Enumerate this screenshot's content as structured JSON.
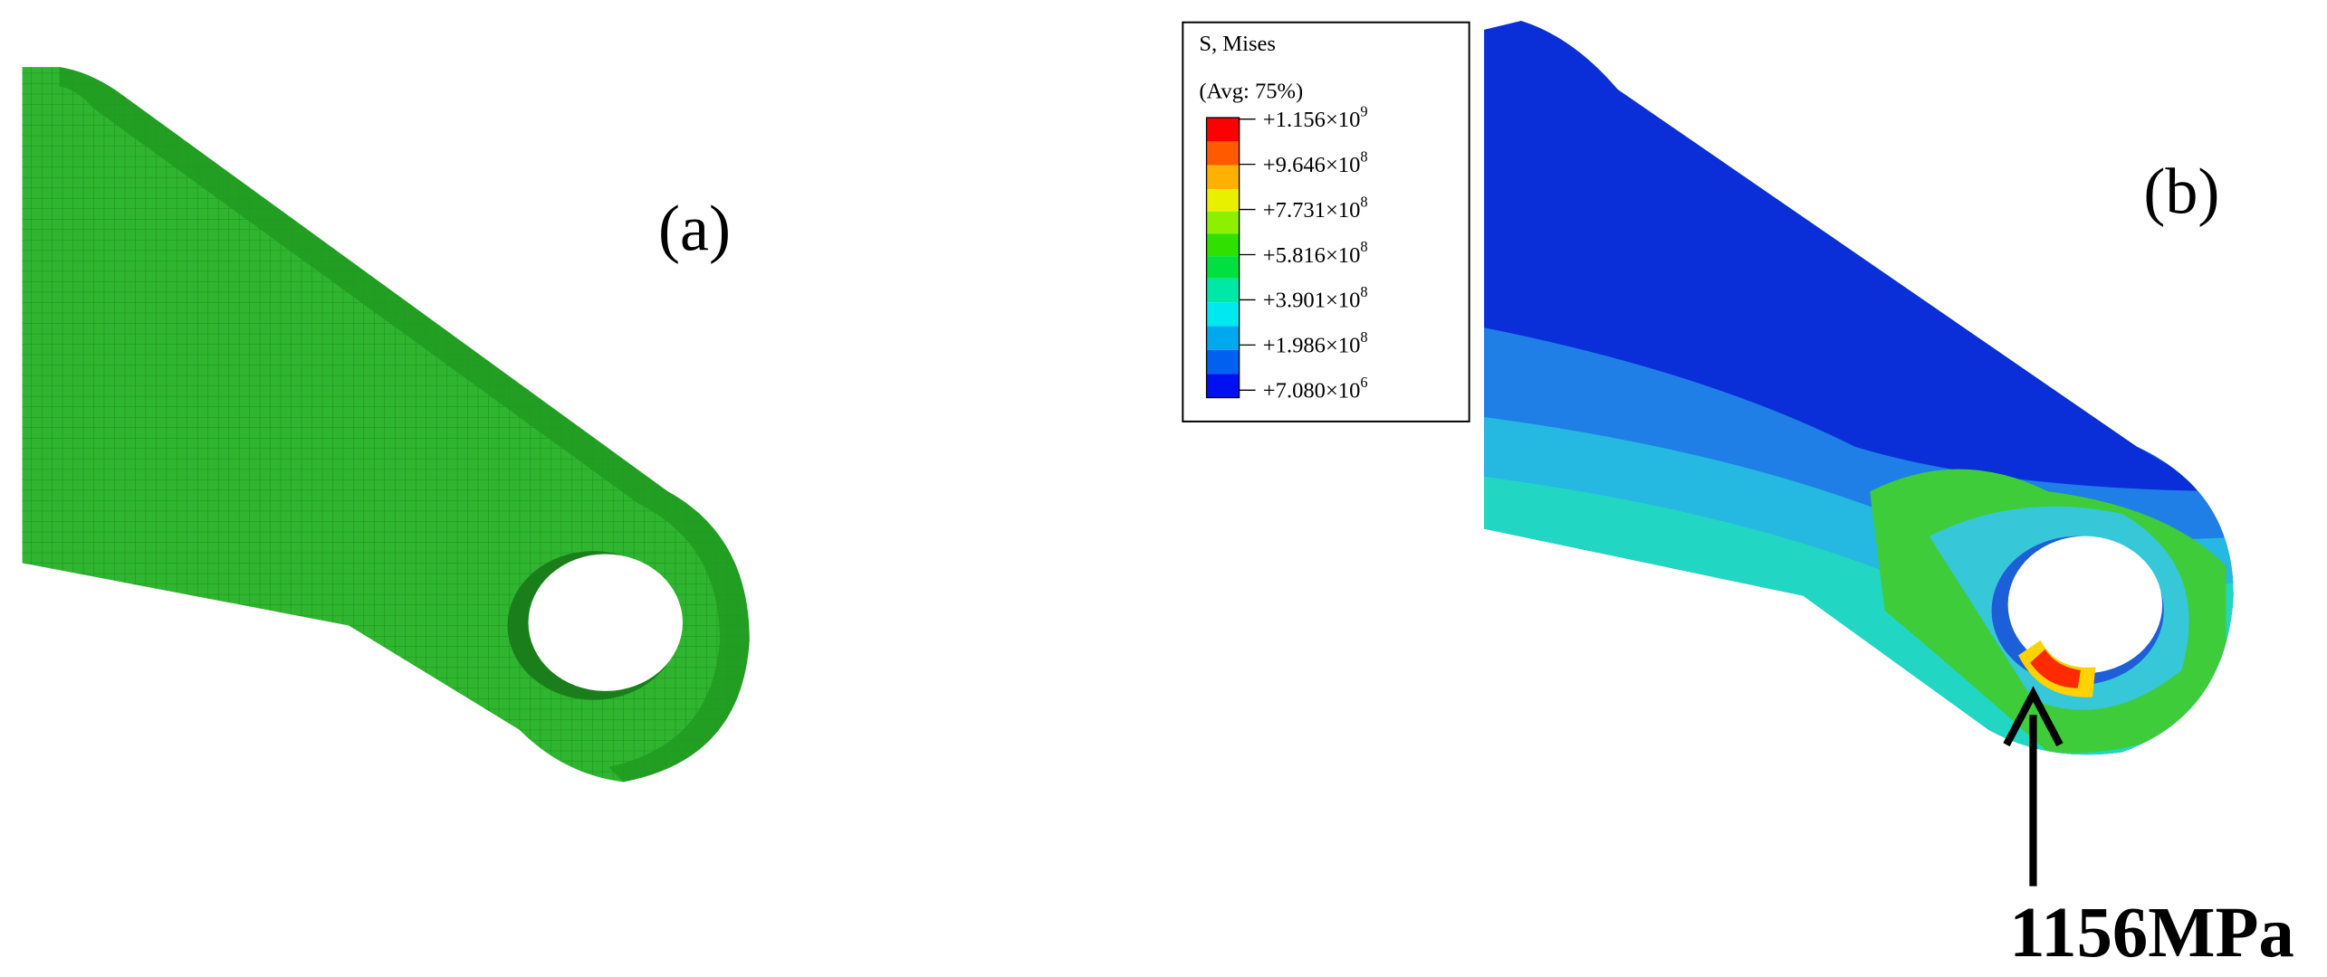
{
  "panels": [
    {
      "label": "(a)"
    },
    {
      "label": "(b)"
    }
  ],
  "legend": {
    "title": "S, Mises",
    "subtitle": "(Avg: 75%)",
    "labels": [
      {
        "text": "+1.156×10",
        "exp": "9"
      },
      {
        "text": "+9.646×10",
        "exp": "8"
      },
      {
        "text": "+7.731×10",
        "exp": "8"
      },
      {
        "text": "+5.816×10",
        "exp": "8"
      },
      {
        "text": "+3.901×10",
        "exp": "8"
      },
      {
        "text": "+1.986×10",
        "exp": "8"
      },
      {
        "text": "+7.080×10",
        "exp": "6"
      }
    ]
  },
  "annotation": "1156MPa"
}
